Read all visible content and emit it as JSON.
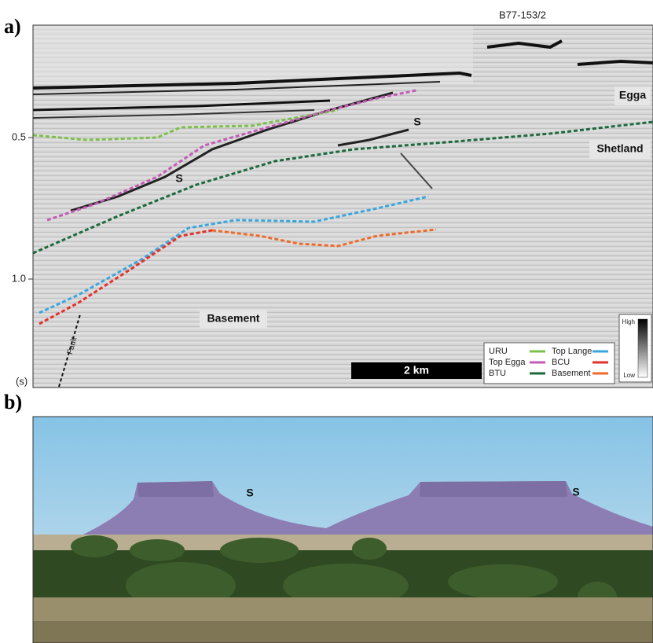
{
  "panel_a": {
    "label": "a)",
    "section_id": "B77-153/2",
    "axis_ticks": [
      "0.5",
      "1.0"
    ],
    "axis_unit": "(s)",
    "annotations": {
      "egga": "Egga",
      "shetland": "Shetland",
      "s_upper": "S",
      "s_lower": "S",
      "basement": "Basement",
      "fault": "Fault"
    },
    "legend": [
      {
        "name": "URU",
        "color": "#7cc04a"
      },
      {
        "name": "Top Egga",
        "color": "#c45bb6"
      },
      {
        "name": "BTU",
        "color": "#1c6a3e"
      },
      {
        "name": "Top Lange",
        "color": "#3aa6de"
      },
      {
        "name": "BCU",
        "color": "#e4312b"
      },
      {
        "name": "Basement",
        "color": "#ef6a2a"
      }
    ],
    "scale_bar": "2 km",
    "color_bar": {
      "high": "High",
      "low": "Low"
    }
  },
  "panel_b": {
    "label": "b)",
    "annotations": [
      "S",
      "S"
    ]
  }
}
